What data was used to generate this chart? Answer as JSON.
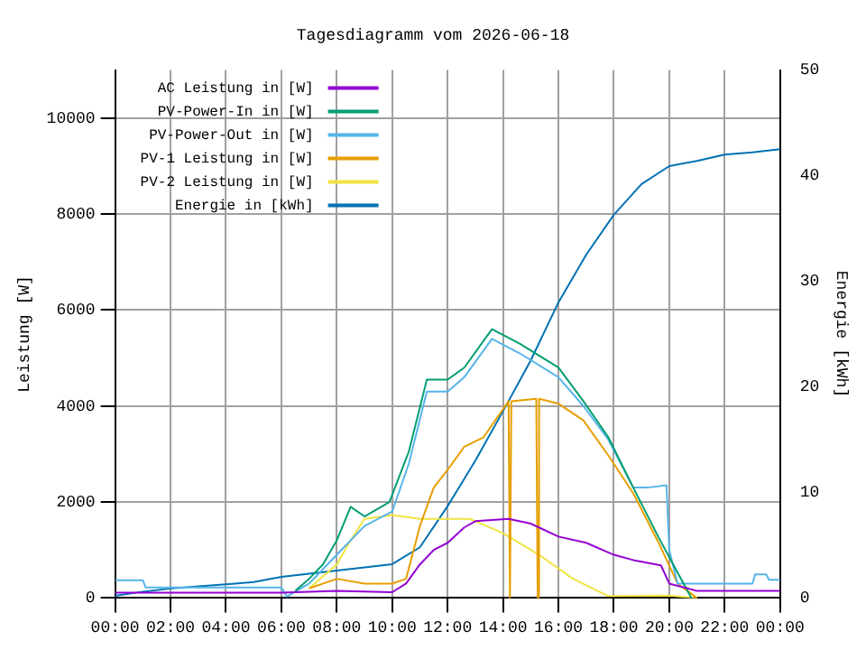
{
  "chart_data": {
    "type": "line",
    "title": "Tagesdiagramm vom 2026-06-18",
    "ylabel": "Leistung [W]",
    "y2label": "Energie [kWh]",
    "xlim": [
      0,
      24
    ],
    "xticks": [
      {
        "value": 0,
        "label": "00:00"
      },
      {
        "value": 2,
        "label": "02:00"
      },
      {
        "value": 4,
        "label": "04:00"
      },
      {
        "value": 6,
        "label": "06:00"
      },
      {
        "value": 8,
        "label": "08:00"
      },
      {
        "value": 10,
        "label": "10:00"
      },
      {
        "value": 12,
        "label": "12:00"
      },
      {
        "value": 14,
        "label": "14:00"
      },
      {
        "value": 16,
        "label": "16:00"
      },
      {
        "value": 18,
        "label": "18:00"
      },
      {
        "value": 20,
        "label": "20:00"
      },
      {
        "value": 22,
        "label": "22:00"
      },
      {
        "value": 24,
        "label": "00:00"
      }
    ],
    "ylim": [
      0,
      11000
    ],
    "yticks": [
      0,
      2000,
      4000,
      6000,
      8000,
      10000
    ],
    "y2lim": [
      0,
      50
    ],
    "y2ticks": [
      0,
      10,
      20,
      30,
      40,
      50
    ],
    "grid": true,
    "legend": "top left",
    "marker": "none",
    "line_style": "solid",
    "series": [
      {
        "name": "AC Leistung in [W]",
        "color": "#9400d3",
        "x": [
          0,
          6,
          8,
          10,
          10.5,
          11,
          11.5,
          12,
          12.6,
          13,
          14.2,
          15,
          16,
          17,
          18,
          18.7,
          19.7,
          20,
          21,
          24
        ],
        "values": [
          110,
          110,
          150,
          120,
          300,
          700,
          1000,
          1150,
          1470,
          1600,
          1650,
          1550,
          1280,
          1150,
          900,
          790,
          680,
          300,
          150,
          150
        ]
      },
      {
        "name": "PV-Power-In in [W]",
        "color": "#009e73",
        "x": [
          6.5,
          7,
          7.5,
          8,
          8.5,
          9,
          9.9,
          10.6,
          11.25,
          12,
          12.6,
          13.6,
          14.6,
          16,
          16.9,
          17.8,
          18.7,
          19.6,
          20.3,
          20.8
        ],
        "values": [
          150,
          400,
          700,
          1200,
          1900,
          1700,
          2000,
          3050,
          4550,
          4550,
          4800,
          5600,
          5300,
          4800,
          4100,
          3350,
          2300,
          1280,
          530,
          0
        ]
      },
      {
        "name": "PV-Power-Out in [W]",
        "color": "#56b4e9",
        "x": [
          0,
          1,
          1.1,
          6,
          6.2,
          7,
          8,
          9,
          10,
          10.6,
          11.25,
          12,
          12.6,
          13.6,
          14.6,
          16,
          16.9,
          17.8,
          18.7,
          19.2,
          19.9,
          20,
          20.3,
          23,
          23.1,
          23.5,
          23.6,
          24
        ],
        "values": [
          370,
          370,
          220,
          220,
          30,
          300,
          900,
          1500,
          1800,
          2800,
          4300,
          4300,
          4600,
          5400,
          5100,
          4600,
          4000,
          3300,
          2300,
          2300,
          2350,
          1000,
          300,
          300,
          490,
          490,
          380,
          380
        ]
      },
      {
        "name": "PV-1 Leistung in [W]",
        "color": "#e69f00",
        "x": [
          7,
          8,
          9,
          10,
          10.5,
          11,
          11.5,
          12,
          12.6,
          13.3,
          14.2,
          14.25,
          14.3,
          15.2,
          15.25,
          15.3,
          16,
          16.9,
          17.8,
          18.7,
          19.6,
          20.3,
          21
        ],
        "values": [
          200,
          400,
          300,
          300,
          400,
          1500,
          2300,
          2670,
          3150,
          3350,
          4100,
          0,
          4100,
          4150,
          0,
          4150,
          4050,
          3700,
          2970,
          2180,
          1170,
          300,
          0
        ]
      },
      {
        "name": "PV-2 Leistung in [W]",
        "color": "#f0e442",
        "x": [
          7,
          8,
          8.5,
          9,
          10,
          11,
          12,
          12.8,
          14,
          15.3,
          16.5,
          17.8,
          20,
          21
        ],
        "values": [
          200,
          700,
          1200,
          1650,
          1730,
          1650,
          1650,
          1650,
          1350,
          900,
          410,
          40,
          50,
          0
        ]
      },
      {
        "name": "Energie in [kWh]",
        "color": "#0072b2",
        "axis": "y2",
        "x": [
          0,
          1,
          2,
          3,
          4,
          5,
          6,
          7,
          8,
          9,
          10,
          11,
          12,
          13,
          14,
          15,
          16,
          17,
          18,
          19,
          20,
          21,
          22,
          23,
          24
        ],
        "values": [
          0.2,
          0.6,
          0.9,
          1.1,
          1.3,
          1.5,
          2.0,
          2.3,
          2.6,
          2.9,
          3.2,
          4.8,
          8.7,
          13.0,
          17.7,
          22.5,
          28.0,
          32.5,
          36.3,
          39.2,
          40.9,
          41.4,
          42.0,
          42.2,
          42.5
        ]
      }
    ]
  }
}
